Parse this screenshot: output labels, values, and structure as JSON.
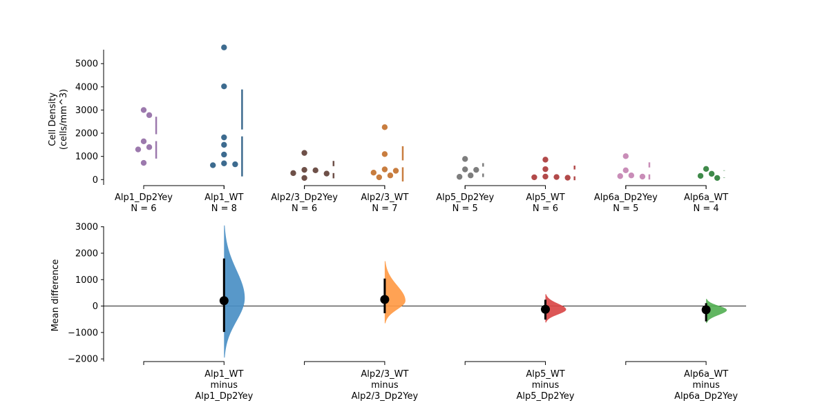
{
  "chart_data": [
    {
      "type": "scatter",
      "ylabel_lines": [
        "Cell Density",
        "(cells/mm^3)"
      ],
      "ylim": [
        -200,
        5900
      ],
      "yticks": [
        0,
        1000,
        2000,
        3000,
        4000,
        5000
      ],
      "groups": [
        {
          "label": "Alp1_Dp2Yey",
          "n_label": "N = 6",
          "color": "#9c79ad",
          "values": [
            3000,
            2780,
            1650,
            1400,
            1300,
            720
          ],
          "mean": 1808,
          "sd": 903
        },
        {
          "label": "Alp1_WT",
          "n_label": "N = 8",
          "color": "#3d6b8f",
          "values": [
            5700,
            4020,
            1820,
            1500,
            1080,
            700,
            660,
            620
          ],
          "mean": 2012,
          "sd": 1875
        },
        {
          "label": "Alp2/3_Dp2Yey",
          "n_label": "N = 6",
          "color": "#6e5048",
          "values": [
            1150,
            420,
            400,
            280,
            260,
            70
          ],
          "mean": 430,
          "sd": 375
        },
        {
          "label": "Alp2/3_WT",
          "n_label": "N = 7",
          "color": "#c87d3f",
          "values": [
            2260,
            1100,
            440,
            380,
            300,
            180,
            100
          ],
          "mean": 680,
          "sd": 760
        },
        {
          "label": "Alp5_Dp2Yey",
          "n_label": "N = 5",
          "color": "#7d7d7d",
          "values": [
            890,
            440,
            420,
            180,
            120
          ],
          "mean": 410,
          "sd": 300
        },
        {
          "label": "Alp5_WT",
          "n_label": "N = 6",
          "color": "#b24a4a",
          "values": [
            860,
            450,
            130,
            110,
            100,
            80
          ],
          "mean": 288,
          "sd": 315
        },
        {
          "label": "Alp6a_Dp2Yey",
          "n_label": "N = 5",
          "color": "#c98db8",
          "values": [
            1010,
            400,
            180,
            150,
            130
          ],
          "mean": 374,
          "sd": 370
        },
        {
          "label": "Alp6a_WT",
          "n_label": "N = 4",
          "color": "#3f8a4a",
          "values": [
            460,
            250,
            160,
            70
          ],
          "mean": 235,
          "sd": 165
        }
      ]
    },
    {
      "type": "area",
      "ylabel": "Mean difference",
      "ylim": [
        -2100,
        3200
      ],
      "yticks": [
        -2000,
        -1000,
        0,
        1000,
        2000,
        3000
      ],
      "comparisons": [
        {
          "label_lines": [
            "Alp1_WT",
            "minus",
            "Alp1_Dp2Yey"
          ],
          "color": "#4a8fc4",
          "diff": 204,
          "ci": [
            -980,
            1800
          ],
          "range": [
            -1950,
            3050
          ],
          "max_width_value": 800,
          "peak_at": 300
        },
        {
          "label_lines": [
            "Alp2/3_WT",
            "minus",
            "Alp2/3_Dp2Yey"
          ],
          "color": "#ff9a45",
          "diff": 250,
          "ci": [
            -270,
            1040
          ],
          "range": [
            -650,
            1700
          ],
          "max_width_value": 800,
          "peak_at": 200
        },
        {
          "label_lines": [
            "Alp5_WT",
            "minus",
            "Alp5_Dp2Yey"
          ],
          "color": "#d94848",
          "diff": -122,
          "ci": [
            -510,
            240
          ],
          "range": [
            -620,
            450
          ],
          "max_width_value": 800,
          "peak_at": -130
        },
        {
          "label_lines": [
            "Alp6a_WT",
            "minus",
            "Alp6a_Dp2Yey"
          ],
          "color": "#55b055",
          "diff": -139,
          "ci": [
            -580,
            110
          ],
          "range": [
            -640,
            270
          ],
          "max_width_value": 800,
          "peak_at": -150
        }
      ]
    }
  ]
}
